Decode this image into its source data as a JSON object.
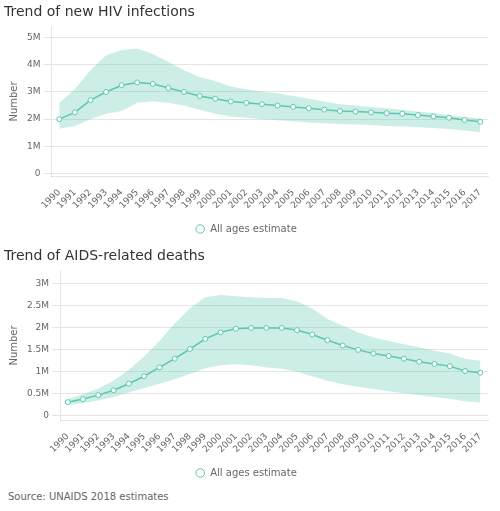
{
  "chart_data": [
    {
      "type": "line",
      "title": "Trend of new HIV infections",
      "ylabel": "Number",
      "x": [
        1990,
        1991,
        1992,
        1993,
        1994,
        1995,
        1996,
        1997,
        1998,
        1999,
        2000,
        2001,
        2002,
        2003,
        2004,
        2005,
        2006,
        2007,
        2008,
        2009,
        2010,
        2011,
        2012,
        2013,
        2014,
        2015,
        2016,
        2017
      ],
      "xlim": [
        1989.5,
        2017.5
      ],
      "xticks": [
        1990,
        1991,
        1992,
        1993,
        1994,
        1995,
        1996,
        1997,
        1998,
        1999,
        2000,
        2001,
        2002,
        2003,
        2004,
        2005,
        2006,
        2007,
        2008,
        2009,
        2010,
        2011,
        2012,
        2013,
        2014,
        2015,
        2016,
        2017
      ],
      "ylim": [
        -100000,
        5400000
      ],
      "yticks": [
        0,
        {
          "value": 1000000,
          "label": "1M"
        },
        {
          "value": 2000000,
          "label": "2M"
        },
        {
          "value": 3000000,
          "label": "3M"
        },
        {
          "value": 4000000,
          "label": "4M"
        },
        {
          "value": 5000000,
          "label": "5M"
        }
      ],
      "grid": "y",
      "legend": "bottom",
      "series": [
        {
          "name": "All ages estimate",
          "color": "#5bc8b0",
          "marker": "circle",
          "values": [
            2000000,
            2250000,
            2700000,
            3000000,
            3250000,
            3350000,
            3300000,
            3150000,
            3000000,
            2850000,
            2750000,
            2650000,
            2600000,
            2550000,
            2500000,
            2450000,
            2400000,
            2350000,
            2300000,
            2280000,
            2250000,
            2220000,
            2200000,
            2150000,
            2100000,
            2050000,
            1970000,
            1900000
          ],
          "upper": [
            2600000,
            3100000,
            3800000,
            4350000,
            4550000,
            4600000,
            4400000,
            4100000,
            3800000,
            3550000,
            3400000,
            3200000,
            3100000,
            3000000,
            2950000,
            2850000,
            2750000,
            2650000,
            2550000,
            2500000,
            2450000,
            2400000,
            2350000,
            2280000,
            2220000,
            2150000,
            2080000,
            2020000
          ],
          "lower": [
            1650000,
            1750000,
            2000000,
            2200000,
            2300000,
            2600000,
            2650000,
            2600000,
            2500000,
            2350000,
            2200000,
            2100000,
            2050000,
            2000000,
            1960000,
            1920000,
            1880000,
            1850000,
            1820000,
            1800000,
            1780000,
            1750000,
            1730000,
            1700000,
            1670000,
            1640000,
            1580000,
            1520000
          ]
        }
      ]
    },
    {
      "type": "line",
      "title": "Trend of AIDS-related deaths",
      "ylabel": "Number",
      "x": [
        1990,
        1991,
        1992,
        1993,
        1994,
        1995,
        1996,
        1997,
        1998,
        1999,
        2000,
        2001,
        2002,
        2003,
        2004,
        2005,
        2006,
        2007,
        2008,
        2009,
        2010,
        2011,
        2012,
        2013,
        2014,
        2015,
        2016,
        2017
      ],
      "xlim": [
        1989.5,
        2017.5
      ],
      "xticks": [
        1990,
        1991,
        1992,
        1993,
        1994,
        1995,
        1996,
        1997,
        1998,
        1999,
        2000,
        2001,
        2002,
        2003,
        2004,
        2005,
        2006,
        2007,
        2008,
        2009,
        2010,
        2011,
        2012,
        2013,
        2014,
        2015,
        2016,
        2017
      ],
      "ylim": [
        -100000,
        3300000
      ],
      "yticks": [
        0,
        {
          "value": 500000,
          "label": "0.5M"
        },
        {
          "value": 1000000,
          "label": "1M"
        },
        {
          "value": 1500000,
          "label": "1.5M"
        },
        {
          "value": 2000000,
          "label": "2M"
        },
        {
          "value": 2500000,
          "label": "2.5M"
        },
        {
          "value": 3000000,
          "label": "3M"
        }
      ],
      "grid": "y",
      "legend": "bottom",
      "annotations": [
        "Source: UNAIDS 2018 estimates"
      ],
      "series": [
        {
          "name": "All ages estimate",
          "color": "#5bc8b0",
          "marker": "circle",
          "values": [
            310000,
            380000,
            470000,
            580000,
            730000,
            900000,
            1100000,
            1300000,
            1520000,
            1750000,
            1900000,
            1980000,
            2000000,
            2000000,
            2000000,
            1950000,
            1850000,
            1720000,
            1600000,
            1500000,
            1420000,
            1360000,
            1300000,
            1230000,
            1180000,
            1130000,
            1020000,
            980000
          ],
          "upper": [
            380000,
            490000,
            620000,
            800000,
            1050000,
            1350000,
            1700000,
            2100000,
            2450000,
            2700000,
            2750000,
            2720000,
            2700000,
            2680000,
            2680000,
            2600000,
            2440000,
            2200000,
            2050000,
            1900000,
            1780000,
            1700000,
            1630000,
            1560000,
            1480000,
            1420000,
            1300000,
            1250000
          ],
          "lower": [
            240000,
            290000,
            350000,
            430000,
            530000,
            630000,
            730000,
            830000,
            950000,
            1080000,
            1150000,
            1170000,
            1150000,
            1100000,
            1070000,
            1000000,
            900000,
            800000,
            720000,
            660000,
            610000,
            560000,
            510000,
            470000,
            430000,
            390000,
            330000,
            300000
          ]
        }
      ]
    }
  ]
}
